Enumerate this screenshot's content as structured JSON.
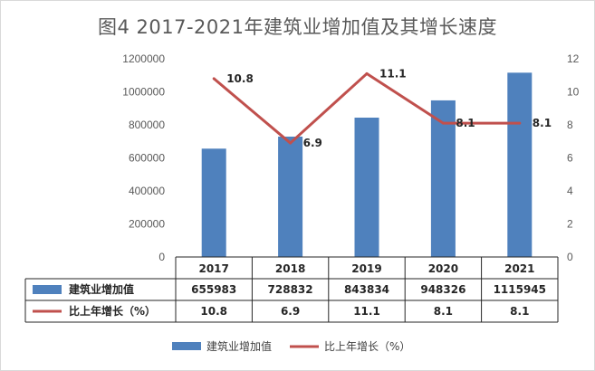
{
  "chart_data": {
    "type": "bar+line",
    "title": "图4  2017-2021年建筑业增加值及其增长速度",
    "categories": [
      "2017",
      "2018",
      "2019",
      "2020",
      "2021"
    ],
    "series": [
      {
        "name": "建筑业增加值",
        "type": "bar",
        "axis": "left",
        "color": "#4f81bd",
        "values": [
          655983,
          728832,
          843834,
          948326,
          1115945
        ]
      },
      {
        "name": "比上年增长（%）",
        "type": "line",
        "axis": "right",
        "color": "#c0504d",
        "values": [
          10.8,
          6.9,
          11.1,
          8.1,
          8.1
        ]
      }
    ],
    "left_axis": {
      "min": 0,
      "max": 1200000,
      "step": 200000,
      "ticks": [
        "0",
        "200000",
        "400000",
        "600000",
        "800000",
        "1000000",
        "1200000"
      ]
    },
    "right_axis": {
      "min": 0,
      "max": 12,
      "step": 2,
      "ticks": [
        "0",
        "2",
        "4",
        "6",
        "8",
        "10",
        "12"
      ]
    },
    "data_labels": [
      "10.8",
      "6.9",
      "11.1",
      "8.1",
      "8.1"
    ],
    "table_rows": [
      {
        "label": "建筑业增加值",
        "values": [
          "655983",
          "728832",
          "843834",
          "948326",
          "1115945"
        ]
      },
      {
        "label": "比上年增长（%）",
        "values": [
          "10.8",
          "6.9",
          "11.1",
          "8.1",
          "8.1"
        ]
      }
    ],
    "legend": {
      "position": "bottom",
      "items": [
        "建筑业增加值",
        "比上年增长（%）"
      ]
    },
    "grid": false
  }
}
